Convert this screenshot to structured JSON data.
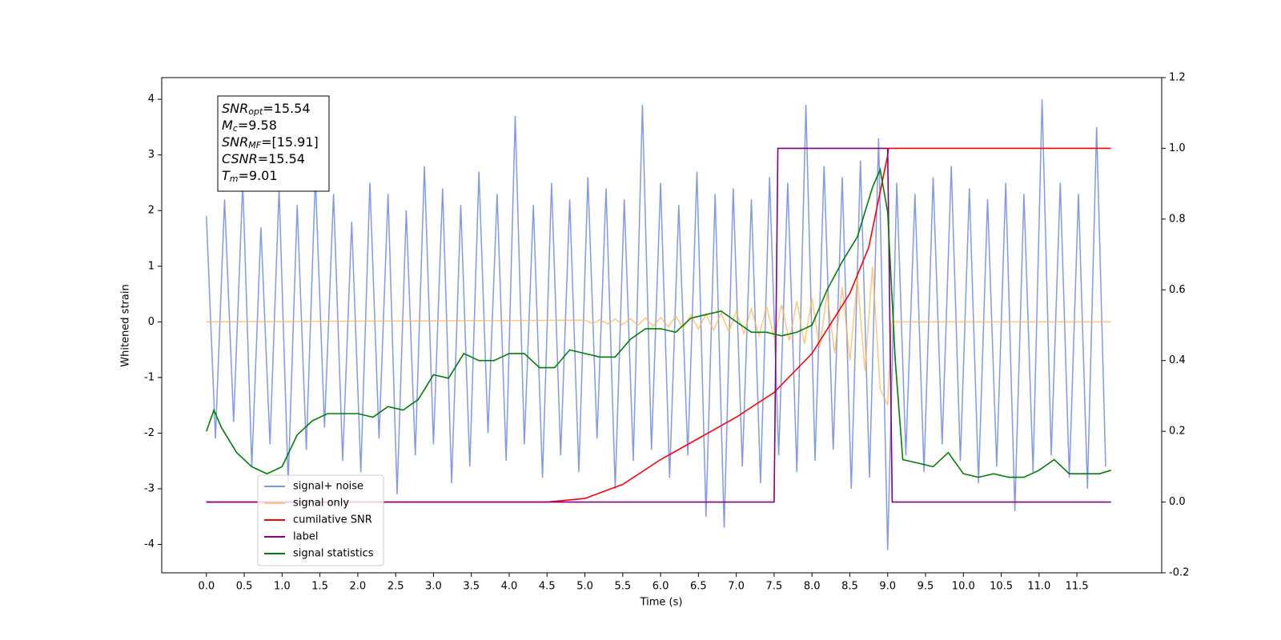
{
  "chart_data": {
    "type": "line",
    "xlabel": "Time (s)",
    "ylabel": "Whitened strain",
    "xlim": [
      -0.59,
      12.62
    ],
    "ylim": [
      -4.51,
      4.39
    ],
    "y2lim": [
      -0.2,
      1.2
    ],
    "xticks": [
      {
        "value": 0,
        "label": "0.0"
      },
      0.5,
      {
        "value": 1,
        "label": "1.0"
      },
      1.5,
      {
        "value": 2,
        "label": "2.0"
      },
      2.5,
      {
        "value": 3,
        "label": "3.0"
      },
      3.5,
      {
        "value": 4,
        "label": "4.0"
      },
      4.5,
      {
        "value": 5,
        "label": "5.0"
      },
      5.5,
      {
        "value": 6,
        "label": "6.0"
      },
      6.5,
      {
        "value": 7,
        "label": "7.0"
      },
      7.5,
      {
        "value": 8,
        "label": "8.0"
      },
      8.5,
      {
        "value": 9,
        "label": "9.0"
      },
      9.5,
      {
        "value": 10,
        "label": "10.0"
      },
      10.5,
      {
        "value": 11,
        "label": "11.0"
      },
      11.5
    ],
    "yticks": [
      -4,
      -3,
      -2,
      -1,
      0,
      1,
      2,
      3,
      4
    ],
    "y2ticks": [
      -0.2,
      {
        "value": 0,
        "label": "0.0"
      },
      0.2,
      0.4,
      0.6,
      0.8,
      {
        "value": 1,
        "label": "1.0"
      },
      1.2
    ],
    "legend": "lower left",
    "annotations": [
      {
        "symbol": "SNR",
        "subscript": "opt",
        "text": "=15.54"
      },
      {
        "symbol": "M",
        "subscript": "c",
        "text": "=9.58"
      },
      {
        "symbol": "SNR",
        "subscript": "MF",
        "text": "=[15.91]"
      },
      {
        "symbol": "CSNR",
        "text": "=15.54"
      },
      {
        "symbol": "T",
        "subscript": "m",
        "text": "=9.01"
      }
    ],
    "series": [
      {
        "name": "signal+ noise",
        "color": "#7b93e8",
        "x": [
          0,
          0.12,
          0.24,
          0.36,
          0.48,
          0.6,
          0.72,
          0.84,
          0.96,
          1.08,
          1.2,
          1.32,
          1.44,
          1.56,
          1.68,
          1.8,
          1.92,
          2.04,
          2.16,
          2.28,
          2.4,
          2.52,
          2.64,
          2.76,
          2.88,
          3,
          3.12,
          3.24,
          3.36,
          3.48,
          3.6,
          3.72,
          3.84,
          3.96,
          4.08,
          4.2,
          4.32,
          4.44,
          4.56,
          4.68,
          4.8,
          4.92,
          5.04,
          5.16,
          5.28,
          5.4,
          5.52,
          5.64,
          5.76,
          5.88,
          6,
          6.12,
          6.24,
          6.36,
          6.48,
          6.6,
          6.72,
          6.84,
          6.96,
          7.08,
          7.2,
          7.32,
          7.44,
          7.56,
          7.68,
          7.8,
          7.92,
          8.04,
          8.16,
          8.28,
          8.4,
          8.52,
          8.64,
          8.76,
          8.88,
          9,
          9.12,
          9.24,
          9.36,
          9.48,
          9.6,
          9.72,
          9.84,
          9.96,
          10.08,
          10.2,
          10.32,
          10.44,
          10.56,
          10.68,
          10.8,
          10.92,
          11.04,
          11.16,
          11.28,
          11.4,
          11.52,
          11.64,
          11.76,
          11.88
        ],
        "values": [
          1.9,
          -2.1,
          2.2,
          -1.8,
          2.5,
          -2.6,
          1.7,
          -2.2,
          2.4,
          -2.9,
          2.1,
          -2.3,
          2.6,
          -1.9,
          2.3,
          -2.5,
          1.8,
          -2.7,
          2.5,
          -2.1,
          2.3,
          -3.1,
          2.0,
          -2.4,
          2.8,
          -2.2,
          2.4,
          -2.9,
          2.1,
          -2.6,
          2.7,
          -2.0,
          2.3,
          -2.5,
          3.7,
          -2.2,
          2.1,
          -2.8,
          2.5,
          -2.4,
          2.2,
          -2.7,
          2.6,
          -2.1,
          2.4,
          -3.0,
          2.2,
          -2.5,
          3.9,
          -2.3,
          2.5,
          -2.8,
          2.1,
          -2.4,
          2.7,
          -3.5,
          2.3,
          -3.7,
          2.4,
          -2.6,
          2.2,
          -2.9,
          2.6,
          -2.4,
          2.5,
          -2.7,
          3.9,
          -2.5,
          2.8,
          -2.3,
          2.6,
          -3.0,
          2.9,
          -2.8,
          3.3,
          -4.1,
          2.5,
          -2.4,
          2.3,
          -2.7,
          2.6,
          -2.2,
          2.8,
          -2.5,
          2.4,
          -2.9,
          2.2,
          -2.6,
          2.5,
          -3.4,
          2.3,
          -2.7,
          4.0,
          -2.4,
          2.5,
          -2.8,
          2.3,
          -3.0,
          3.5,
          -2.6
        ]
      },
      {
        "name": "signal only",
        "color": "#ffb347",
        "x": [
          0,
          5,
          5.1,
          5.2,
          5.3,
          5.4,
          5.5,
          5.6,
          5.7,
          5.8,
          5.9,
          6,
          6.1,
          6.2,
          6.3,
          6.4,
          6.5,
          6.6,
          6.7,
          6.8,
          6.9,
          7,
          7.1,
          7.2,
          7.3,
          7.4,
          7.5,
          7.6,
          7.7,
          7.8,
          7.9,
          8,
          8.1,
          8.2,
          8.3,
          8.4,
          8.5,
          8.6,
          8.7,
          8.8,
          8.9,
          9,
          9.05,
          11.95
        ],
        "values": [
          0,
          0.03,
          -0.03,
          0.04,
          -0.04,
          0.05,
          -0.05,
          0.06,
          -0.06,
          0.07,
          -0.08,
          0.08,
          -0.09,
          0.1,
          -0.11,
          0.12,
          -0.13,
          0.14,
          -0.15,
          0.16,
          -0.18,
          0.19,
          -0.21,
          0.23,
          -0.25,
          0.27,
          -0.29,
          0.31,
          -0.34,
          0.37,
          -0.4,
          0.43,
          -0.47,
          0.52,
          -0.57,
          0.63,
          -0.7,
          0.78,
          -0.88,
          1.0,
          -1.2,
          -1.5,
          0,
          0
        ]
      },
      {
        "name": "cumilative SNR",
        "color": "#ff0000",
        "axis": "y2",
        "x": [
          0,
          4.5,
          5,
          5.5,
          6,
          6.5,
          7,
          7.5,
          8,
          8.5,
          8.75,
          9,
          9.01,
          11.95
        ],
        "values": [
          0,
          0,
          0.01,
          0.05,
          0.12,
          0.18,
          0.24,
          0.31,
          0.42,
          0.59,
          0.72,
          0.98,
          1,
          1
        ]
      },
      {
        "name": "label",
        "color": "#800080",
        "axis": "y2",
        "x": [
          0,
          7.5,
          7.55,
          9,
          9.06,
          11.95
        ],
        "values": [
          0,
          0,
          1,
          1,
          0,
          0
        ]
      },
      {
        "name": "signal statistics",
        "color": "#008000",
        "axis": "y2",
        "x": [
          0,
          0.1,
          0.2,
          0.4,
          0.6,
          0.8,
          1,
          1.2,
          1.4,
          1.6,
          1.8,
          2,
          2.2,
          2.4,
          2.6,
          2.8,
          3,
          3.2,
          3.4,
          3.6,
          3.8,
          4,
          4.2,
          4.4,
          4.6,
          4.8,
          5,
          5.2,
          5.4,
          5.6,
          5.8,
          6,
          6.2,
          6.4,
          6.6,
          6.8,
          7,
          7.2,
          7.4,
          7.6,
          7.8,
          8,
          8.2,
          8.4,
          8.6,
          8.8,
          8.9,
          9,
          9.1,
          9.2,
          9.4,
          9.6,
          9.8,
          10,
          10.2,
          10.4,
          10.6,
          10.8,
          11,
          11.2,
          11.4,
          11.6,
          11.8,
          11.95
        ],
        "values": [
          0.2,
          0.26,
          0.21,
          0.14,
          0.1,
          0.08,
          0.1,
          0.19,
          0.23,
          0.25,
          0.25,
          0.25,
          0.24,
          0.27,
          0.26,
          0.29,
          0.36,
          0.35,
          0.42,
          0.4,
          0.4,
          0.42,
          0.42,
          0.38,
          0.38,
          0.43,
          0.42,
          0.41,
          0.41,
          0.46,
          0.49,
          0.49,
          0.48,
          0.52,
          0.53,
          0.54,
          0.51,
          0.48,
          0.48,
          0.47,
          0.48,
          0.5,
          0.6,
          0.68,
          0.75,
          0.89,
          0.94,
          0.82,
          0.4,
          0.12,
          0.11,
          0.1,
          0.14,
          0.08,
          0.07,
          0.08,
          0.07,
          0.07,
          0.09,
          0.12,
          0.08,
          0.08,
          0.08,
          0.09
        ]
      }
    ]
  }
}
